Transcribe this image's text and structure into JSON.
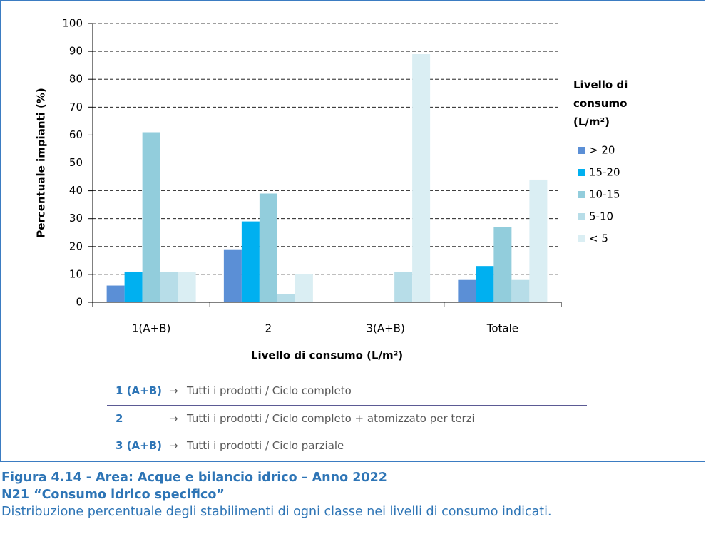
{
  "chart_data": {
    "type": "bar",
    "y_label": "Percentuale impianti (%)",
    "x_label": "Livello di consumo (L/m²)",
    "legend_title": "Livello di consumo (L/m²)",
    "categories": [
      "1(A+B)",
      "2",
      "3(A+B)",
      "Totale"
    ],
    "series": [
      {
        "name": "> 20",
        "color": "#5b8fd6",
        "values": [
          6,
          19,
          0,
          8
        ]
      },
      {
        "name": "15-20",
        "color": "#00b0f0",
        "values": [
          11,
          29,
          0,
          13
        ]
      },
      {
        "name": "10-15",
        "color": "#92cddc",
        "values": [
          61,
          39,
          0,
          27
        ]
      },
      {
        "name": "5-10",
        "color": "#b7dde8",
        "values": [
          11,
          3,
          11,
          8
        ]
      },
      {
        "name": "< 5",
        "color": "#daeef3",
        "values": [
          11,
          10,
          89,
          44
        ]
      }
    ],
    "ylim": [
      0,
      100
    ],
    "yticks": [
      0,
      10,
      20,
      30,
      40,
      50,
      60,
      70,
      80,
      90,
      100
    ],
    "grid": true,
    "legend": "right"
  },
  "legend_table": [
    {
      "key": "1 (A+B)",
      "arrow": "→",
      "desc": "Tutti i prodotti / Ciclo completo"
    },
    {
      "key": "2",
      "arrow": "→",
      "desc": "Tutti i prodotti / Ciclo completo + atomizzato per terzi"
    },
    {
      "key": "3 (A+B)",
      "arrow": "→",
      "desc": "Tutti i prodotti / Ciclo parziale"
    }
  ],
  "caption": {
    "label": "Figura 4.14",
    "separator": "-",
    "title": "Area: Acque e bilancio idrico – Anno 2022",
    "subtitle": "N21 “Consumo idrico specifico”",
    "text": "Distribuzione percentuale degli stabilimenti di ogni classe nei livelli di consumo indicati."
  }
}
